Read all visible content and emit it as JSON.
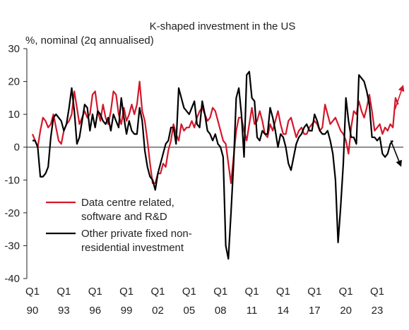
{
  "chart_data": {
    "type": "line",
    "title": "K-shaped investment in the US",
    "ylabel": "%, nominal (2q annualised)",
    "ylim": [
      -40,
      30
    ],
    "yticks": [
      30,
      20,
      10,
      0,
      -10,
      -20,
      -30,
      -40
    ],
    "x_range": [
      1990.0,
      2025.5
    ],
    "xticks": [
      {
        "year": 1990,
        "line1": "Q1",
        "line2": "90"
      },
      {
        "year": 1993,
        "line1": "Q1",
        "line2": "93"
      },
      {
        "year": 1996,
        "line1": "Q1",
        "line2": "96"
      },
      {
        "year": 1999,
        "line1": "Q1",
        "line2": "99"
      },
      {
        "year": 2002,
        "line1": "Q1",
        "line2": "02"
      },
      {
        "year": 2005,
        "line1": "Q1",
        "line2": "05"
      },
      {
        "year": 2008,
        "line1": "Q1",
        "line2": "08"
      },
      {
        "year": 2011,
        "line1": "Q1",
        "line2": "11"
      },
      {
        "year": 2014,
        "line1": "Q1",
        "line2": "14"
      },
      {
        "year": 2017,
        "line1": "Q1",
        "line2": "17"
      },
      {
        "year": 2020,
        "line1": "Q1",
        "line2": "20"
      },
      {
        "year": 2023,
        "line1": "Q1",
        "line2": "23"
      }
    ],
    "legend": {
      "placement": "bottom-left",
      "items": [
        {
          "series": 0,
          "lines": [
            "Data centre related,",
            "software and R&D"
          ]
        },
        {
          "series": 1,
          "lines": [
            "Other private fixed non-",
            "residential investment"
          ]
        }
      ]
    },
    "annotations": [
      {
        "type": "arrow",
        "color": "#d4172a",
        "from": [
          2024.7,
          11.5
        ],
        "to": [
          2025.5,
          19
        ]
      },
      {
        "type": "arrow",
        "color": "#000000",
        "from": [
          2024.3,
          2
        ],
        "to": [
          2025.3,
          -6
        ]
      }
    ],
    "series": [
      {
        "color": "#d4172a",
        "points": [
          [
            1990.0,
            4
          ],
          [
            1990.25,
            2
          ],
          [
            1990.5,
            0
          ],
          [
            1990.75,
            5
          ],
          [
            1991.0,
            9
          ],
          [
            1991.25,
            8
          ],
          [
            1991.5,
            6
          ],
          [
            1991.75,
            7
          ],
          [
            1992.0,
            10
          ],
          [
            1992.25,
            6
          ],
          [
            1992.5,
            2
          ],
          [
            1992.75,
            1
          ],
          [
            1993.0,
            5
          ],
          [
            1993.25,
            7
          ],
          [
            1993.5,
            8
          ],
          [
            1993.75,
            10
          ],
          [
            1994.0,
            17
          ],
          [
            1994.25,
            12
          ],
          [
            1994.5,
            7
          ],
          [
            1994.75,
            9
          ],
          [
            1995.0,
            11
          ],
          [
            1995.25,
            9
          ],
          [
            1995.5,
            10
          ],
          [
            1995.75,
            16
          ],
          [
            1996.0,
            17
          ],
          [
            1996.25,
            11
          ],
          [
            1996.5,
            8
          ],
          [
            1996.75,
            13
          ],
          [
            1997.0,
            9
          ],
          [
            1997.25,
            7
          ],
          [
            1997.5,
            11
          ],
          [
            1997.75,
            17
          ],
          [
            1998.0,
            16
          ],
          [
            1998.25,
            10
          ],
          [
            1998.5,
            7
          ],
          [
            1998.75,
            12
          ],
          [
            1999.0,
            8
          ],
          [
            1999.25,
            10
          ],
          [
            1999.5,
            13
          ],
          [
            1999.75,
            10
          ],
          [
            2000.0,
            13
          ],
          [
            2000.25,
            20
          ],
          [
            2000.5,
            11
          ],
          [
            2000.75,
            8
          ],
          [
            2001.0,
            2
          ],
          [
            2001.25,
            -5
          ],
          [
            2001.5,
            -11
          ],
          [
            2001.75,
            -11
          ],
          [
            2002.0,
            -8
          ],
          [
            2002.25,
            -8
          ],
          [
            2002.5,
            -5
          ],
          [
            2002.75,
            -6
          ],
          [
            2003.0,
            -1
          ],
          [
            2003.25,
            2
          ],
          [
            2003.5,
            7
          ],
          [
            2003.75,
            4
          ],
          [
            2004.0,
            2
          ],
          [
            2004.25,
            7
          ],
          [
            2004.5,
            5
          ],
          [
            2004.75,
            6
          ],
          [
            2005.0,
            6
          ],
          [
            2005.25,
            8
          ],
          [
            2005.5,
            6
          ],
          [
            2005.75,
            9
          ],
          [
            2006.0,
            11
          ],
          [
            2006.25,
            12
          ],
          [
            2006.5,
            10
          ],
          [
            2006.75,
            8
          ],
          [
            2007.0,
            9
          ],
          [
            2007.25,
            12
          ],
          [
            2007.5,
            11
          ],
          [
            2007.75,
            8
          ],
          [
            2008.0,
            5
          ],
          [
            2008.25,
            2
          ],
          [
            2008.5,
            1
          ],
          [
            2008.75,
            -5
          ],
          [
            2009.0,
            -11
          ],
          [
            2009.25,
            -3
          ],
          [
            2009.5,
            5
          ],
          [
            2009.75,
            9
          ],
          [
            2010.0,
            9
          ],
          [
            2010.25,
            5
          ],
          [
            2010.5,
            2
          ],
          [
            2010.75,
            7
          ],
          [
            2011.0,
            12
          ],
          [
            2011.25,
            7
          ],
          [
            2011.5,
            8
          ],
          [
            2011.75,
            11
          ],
          [
            2012.0,
            8
          ],
          [
            2012.25,
            4
          ],
          [
            2012.5,
            3
          ],
          [
            2012.75,
            7
          ],
          [
            2013.0,
            5
          ],
          [
            2013.25,
            8
          ],
          [
            2013.5,
            11
          ],
          [
            2013.75,
            7
          ],
          [
            2014.0,
            4
          ],
          [
            2014.25,
            4
          ],
          [
            2014.5,
            8
          ],
          [
            2014.75,
            9
          ],
          [
            2015.0,
            6
          ],
          [
            2015.25,
            3
          ],
          [
            2015.5,
            5
          ],
          [
            2015.75,
            6
          ],
          [
            2016.0,
            4
          ],
          [
            2016.25,
            4
          ],
          [
            2016.5,
            6
          ],
          [
            2016.75,
            7
          ],
          [
            2017.0,
            8
          ],
          [
            2017.25,
            7
          ],
          [
            2017.5,
            5
          ],
          [
            2017.75,
            6
          ],
          [
            2018.0,
            13
          ],
          [
            2018.25,
            10
          ],
          [
            2018.5,
            7
          ],
          [
            2018.75,
            8
          ],
          [
            2019.0,
            9
          ],
          [
            2019.25,
            7
          ],
          [
            2019.5,
            5
          ],
          [
            2019.75,
            4
          ],
          [
            2020.0,
            2
          ],
          [
            2020.25,
            -2
          ],
          [
            2020.5,
            6
          ],
          [
            2020.75,
            11
          ],
          [
            2021.0,
            10
          ],
          [
            2021.25,
            14
          ],
          [
            2021.5,
            11
          ],
          [
            2021.75,
            9
          ],
          [
            2022.0,
            12
          ],
          [
            2022.25,
            16
          ],
          [
            2022.5,
            11
          ],
          [
            2022.75,
            5
          ],
          [
            2023.0,
            6
          ],
          [
            2023.25,
            7
          ],
          [
            2023.5,
            4
          ],
          [
            2023.75,
            6
          ],
          [
            2024.0,
            5
          ],
          [
            2024.25,
            7
          ],
          [
            2024.5,
            6
          ],
          [
            2024.75,
            15
          ],
          [
            2025.0,
            13
          ]
        ]
      },
      {
        "color": "#000000",
        "points": [
          [
            1990.0,
            2
          ],
          [
            1990.25,
            2
          ],
          [
            1990.5,
            0
          ],
          [
            1990.75,
            -9
          ],
          [
            1991.0,
            -9
          ],
          [
            1991.25,
            -8
          ],
          [
            1991.5,
            -6
          ],
          [
            1991.75,
            3
          ],
          [
            1992.0,
            9
          ],
          [
            1992.25,
            10
          ],
          [
            1992.5,
            9
          ],
          [
            1992.75,
            8
          ],
          [
            1993.0,
            5
          ],
          [
            1993.25,
            7
          ],
          [
            1993.5,
            12
          ],
          [
            1993.75,
            18
          ],
          [
            1994.0,
            11
          ],
          [
            1994.25,
            1
          ],
          [
            1994.5,
            3
          ],
          [
            1994.75,
            8
          ],
          [
            1995.0,
            13
          ],
          [
            1995.25,
            12
          ],
          [
            1995.5,
            5
          ],
          [
            1995.75,
            10
          ],
          [
            1996.0,
            6
          ],
          [
            1996.25,
            11
          ],
          [
            1996.5,
            10
          ],
          [
            1996.75,
            8
          ],
          [
            1997.0,
            7
          ],
          [
            1997.25,
            9
          ],
          [
            1997.5,
            5
          ],
          [
            1997.75,
            10
          ],
          [
            1998.0,
            8
          ],
          [
            1998.25,
            6
          ],
          [
            1998.5,
            15
          ],
          [
            1998.75,
            9
          ],
          [
            1999.0,
            4
          ],
          [
            1999.25,
            8
          ],
          [
            1999.5,
            5
          ],
          [
            1999.75,
            4
          ],
          [
            2000.0,
            4
          ],
          [
            2000.25,
            12
          ],
          [
            2000.5,
            8
          ],
          [
            2000.75,
            -1
          ],
          [
            2001.0,
            -6
          ],
          [
            2001.25,
            -9
          ],
          [
            2001.5,
            -10
          ],
          [
            2001.75,
            -13
          ],
          [
            2002.0,
            -8
          ],
          [
            2002.25,
            -5
          ],
          [
            2002.5,
            -2
          ],
          [
            2002.75,
            1
          ],
          [
            2003.0,
            2
          ],
          [
            2003.25,
            6
          ],
          [
            2003.5,
            6
          ],
          [
            2003.75,
            1
          ],
          [
            2004.0,
            18
          ],
          [
            2004.25,
            15
          ],
          [
            2004.5,
            12
          ],
          [
            2004.75,
            11
          ],
          [
            2005.0,
            10
          ],
          [
            2005.25,
            12
          ],
          [
            2005.5,
            14
          ],
          [
            2005.75,
            7
          ],
          [
            2006.0,
            6
          ],
          [
            2006.25,
            14
          ],
          [
            2006.5,
            10
          ],
          [
            2006.75,
            5
          ],
          [
            2007.0,
            4
          ],
          [
            2007.25,
            2
          ],
          [
            2007.5,
            4
          ],
          [
            2007.75,
            1
          ],
          [
            2008.0,
            0
          ],
          [
            2008.25,
            -3
          ],
          [
            2008.5,
            -30
          ],
          [
            2008.75,
            -34
          ],
          [
            2009.0,
            -20
          ],
          [
            2009.25,
            -5
          ],
          [
            2009.5,
            15
          ],
          [
            2009.75,
            18
          ],
          [
            2010.0,
            10
          ],
          [
            2010.25,
            -3
          ],
          [
            2010.5,
            22
          ],
          [
            2010.75,
            23
          ],
          [
            2011.0,
            15
          ],
          [
            2011.25,
            14
          ],
          [
            2011.5,
            3
          ],
          [
            2011.75,
            2
          ],
          [
            2012.0,
            5
          ],
          [
            2012.25,
            4
          ],
          [
            2012.5,
            4
          ],
          [
            2012.75,
            12
          ],
          [
            2013.0,
            9
          ],
          [
            2013.25,
            5
          ],
          [
            2013.5,
            0
          ],
          [
            2013.75,
            4
          ],
          [
            2014.0,
            3
          ],
          [
            2014.25,
            0
          ],
          [
            2014.5,
            -5
          ],
          [
            2014.75,
            -7
          ],
          [
            2015.0,
            -3
          ],
          [
            2015.25,
            1
          ],
          [
            2015.5,
            3
          ],
          [
            2015.75,
            4
          ],
          [
            2016.0,
            6
          ],
          [
            2016.25,
            7
          ],
          [
            2016.5,
            5
          ],
          [
            2016.75,
            5
          ],
          [
            2017.0,
            10
          ],
          [
            2017.25,
            8
          ],
          [
            2017.5,
            5
          ],
          [
            2017.75,
            4
          ],
          [
            2018.0,
            4
          ],
          [
            2018.25,
            5
          ],
          [
            2018.5,
            2
          ],
          [
            2018.75,
            -2
          ],
          [
            2019.0,
            -10
          ],
          [
            2019.25,
            -29
          ],
          [
            2019.5,
            -18
          ],
          [
            2019.75,
            -5
          ],
          [
            2020.0,
            15
          ],
          [
            2020.25,
            8
          ],
          [
            2020.5,
            3
          ],
          [
            2020.75,
            3
          ],
          [
            2021.0,
            1
          ],
          [
            2021.25,
            22
          ],
          [
            2021.5,
            21
          ],
          [
            2021.75,
            20
          ],
          [
            2022.0,
            17
          ],
          [
            2022.25,
            13
          ],
          [
            2022.5,
            3
          ],
          [
            2022.75,
            3
          ],
          [
            2023.0,
            2
          ],
          [
            2023.25,
            3
          ],
          [
            2023.5,
            -2
          ],
          [
            2023.75,
            -3
          ],
          [
            2024.0,
            -2
          ],
          [
            2024.25,
            1
          ],
          [
            2024.5,
            2
          ]
        ]
      }
    ]
  }
}
